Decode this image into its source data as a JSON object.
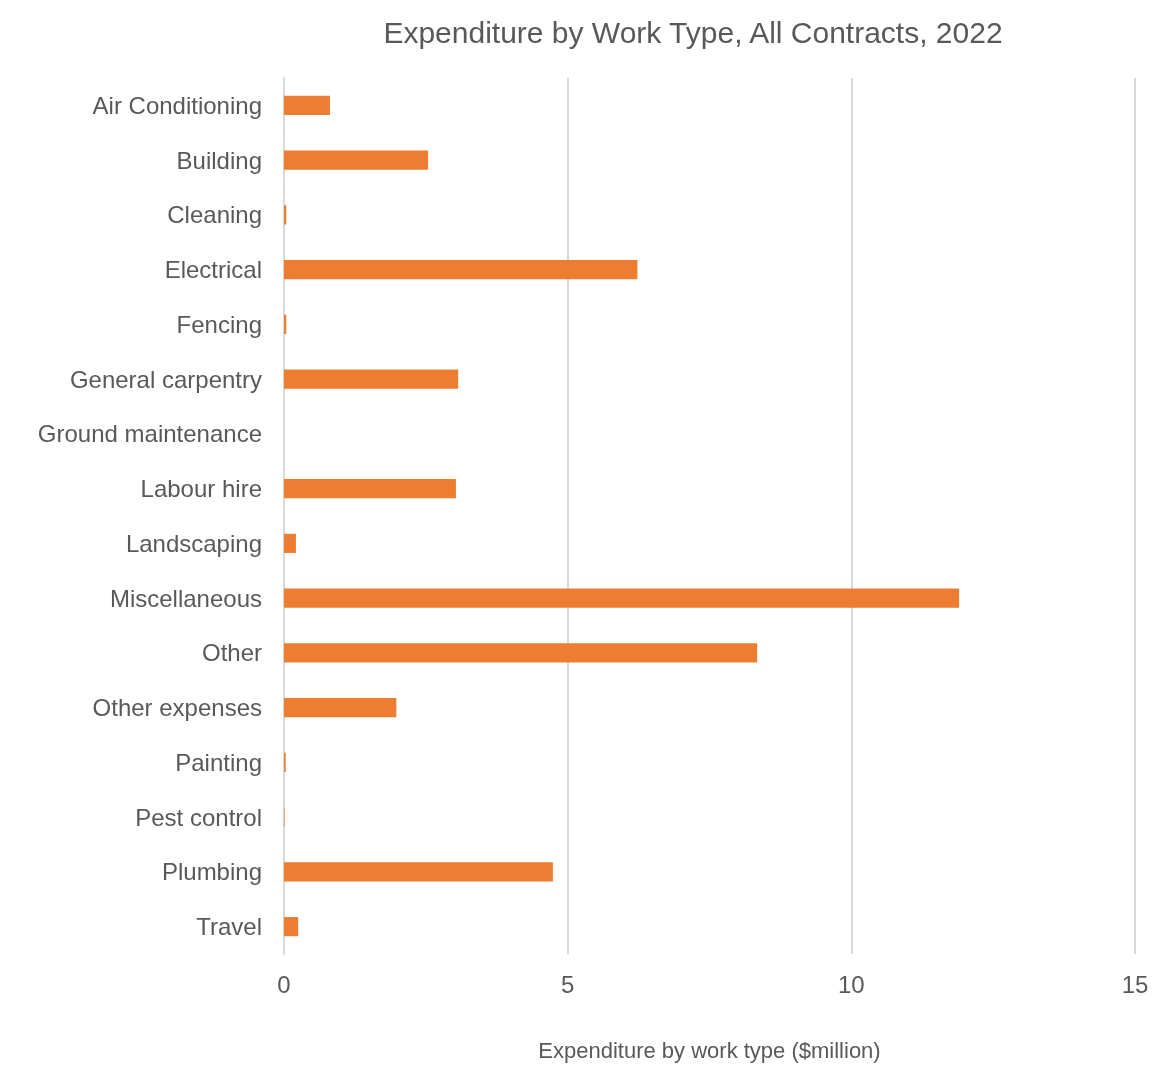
{
  "chart_data": {
    "type": "bar",
    "orientation": "horizontal",
    "title": "Expenditure by Work Type, All Contracts, 2022",
    "xlabel": "Expenditure by work type ($million)",
    "categories": [
      "Air Conditioning",
      "Building",
      "Cleaning",
      "Electrical",
      "Fencing",
      "General carpentry",
      "Ground maintenance",
      "Labour hire",
      "Landscaping",
      "Miscellaneous",
      "Other",
      "Other expenses",
      "Painting",
      "Pest control",
      "Plumbing",
      "Travel"
    ],
    "values": [
      0.81,
      2.54,
      0.04,
      6.23,
      0.04,
      3.07,
      0,
      3.03,
      0.21,
      11.9,
      8.34,
      1.98,
      0.03,
      0.01,
      4.74,
      0.25
    ],
    "color": "#ed7d31",
    "xlim": [
      0,
      15
    ],
    "xticks": [
      0,
      5,
      10,
      15
    ],
    "grid": "x"
  }
}
